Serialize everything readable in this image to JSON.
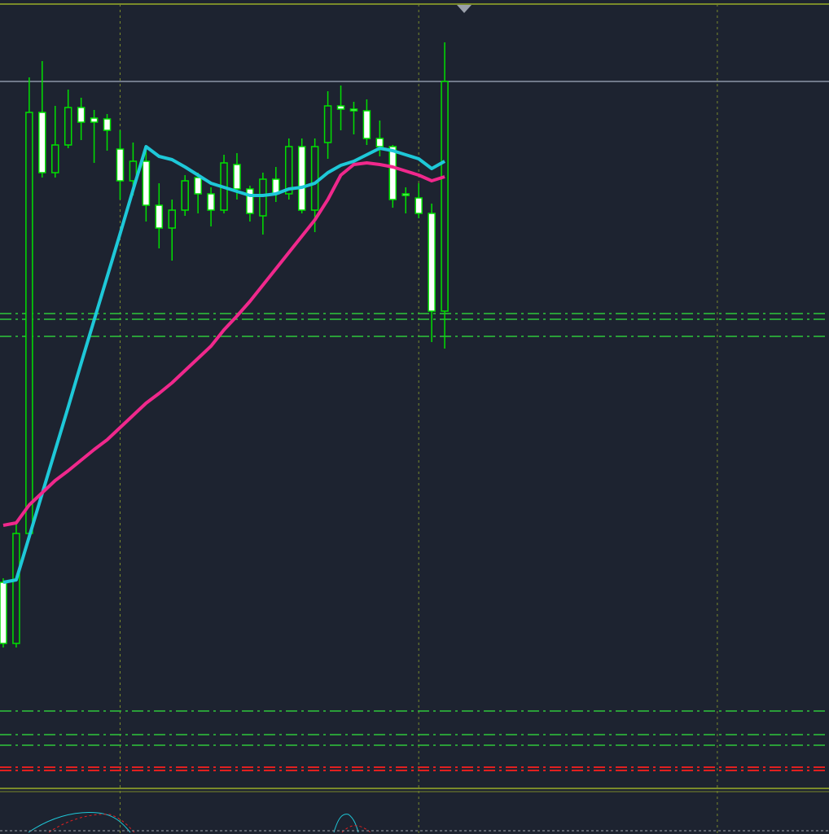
{
  "chart_data": {
    "type": "candlestick",
    "x": [
      0,
      1,
      2,
      3,
      4,
      5,
      6,
      7,
      8,
      9,
      10,
      11,
      12,
      13,
      14,
      15,
      16,
      17,
      18,
      19,
      20,
      21,
      22,
      23,
      24,
      25,
      26,
      27,
      28,
      29,
      30,
      31,
      32,
      33,
      34
    ],
    "open": [
      253,
      178,
      313,
      830,
      756,
      790,
      836,
      823,
      822,
      785,
      746,
      770,
      716,
      688,
      710,
      750,
      730,
      710,
      766,
      736,
      703,
      748,
      730,
      788,
      710,
      793,
      838,
      834,
      832,
      798,
      788,
      730,
      725,
      706,
      586
    ],
    "close": [
      178,
      313,
      830,
      756,
      790,
      836,
      818,
      818,
      808,
      746,
      770,
      716,
      688,
      710,
      746,
      730,
      710,
      768,
      736,
      706,
      748,
      730,
      788,
      710,
      788,
      838,
      834,
      832,
      798,
      788,
      723,
      728,
      706,
      586,
      868
    ],
    "high": [
      258,
      328,
      873,
      893,
      838,
      858,
      848,
      833,
      828,
      808,
      793,
      788,
      743,
      723,
      753,
      756,
      738,
      778,
      780,
      740,
      756,
      763,
      798,
      798,
      798,
      856,
      863,
      843,
      846,
      820,
      790,
      738,
      743,
      718,
      916
    ],
    "low": [
      173,
      173,
      308,
      750,
      750,
      786,
      796,
      768,
      783,
      723,
      728,
      696,
      663,
      648,
      703,
      706,
      690,
      706,
      723,
      696,
      680,
      720,
      723,
      706,
      683,
      773,
      808,
      803,
      790,
      776,
      713,
      706,
      700,
      548,
      540
    ],
    "up_color": "#00e000",
    "down_color": "#ffffff",
    "series": [
      {
        "color": "#1ec8d8",
        "values": [
          253,
          256,
          309,
          362,
          415,
          468,
          522,
          575,
          628,
          681,
          735,
          788,
          776,
          772,
          763,
          753,
          743,
          738,
          733,
          728,
          728,
          730,
          736,
          738,
          743,
          756,
          765,
          770,
          778,
          786,
          783,
          778,
          773,
          761,
          770
        ]
      },
      {
        "color": "#f0288c",
        "values": [
          323,
          326,
          348,
          363,
          378,
          390,
          403,
          416,
          428,
          443,
          458,
          473,
          485,
          498,
          513,
          528,
          543,
          563,
          580,
          598,
          618,
          638,
          658,
          678,
          698,
          723,
          753,
          766,
          768,
          766,
          763,
          758,
          753,
          746,
          751
        ]
      }
    ],
    "levels": [
      {
        "value": 868,
        "color": "#8c96a8",
        "style": "solid"
      },
      {
        "value": 583,
        "color": "#2ec83a",
        "style": "dashdot"
      },
      {
        "value": 576,
        "color": "#2ec83a",
        "style": "dashdot"
      },
      {
        "value": 555,
        "color": "#2ec83a",
        "style": "dashdot"
      },
      {
        "value": 95,
        "color": "#2ec83a",
        "style": "dashdot"
      },
      {
        "value": 66,
        "color": "#2ec83a",
        "style": "dashdot"
      },
      {
        "value": 53,
        "color": "#2ec83a",
        "style": "dashdot"
      },
      {
        "value": 26,
        "color": "#e02020",
        "style": "dashdot"
      },
      {
        "value": 22,
        "color": "#e02020",
        "style": "dashdot"
      }
    ],
    "xlim": [
      -0.25,
      63.6
    ],
    "ylim": [
      0,
      963
    ],
    "xticks": [
      9,
      32,
      55
    ],
    "grid": true
  }
}
